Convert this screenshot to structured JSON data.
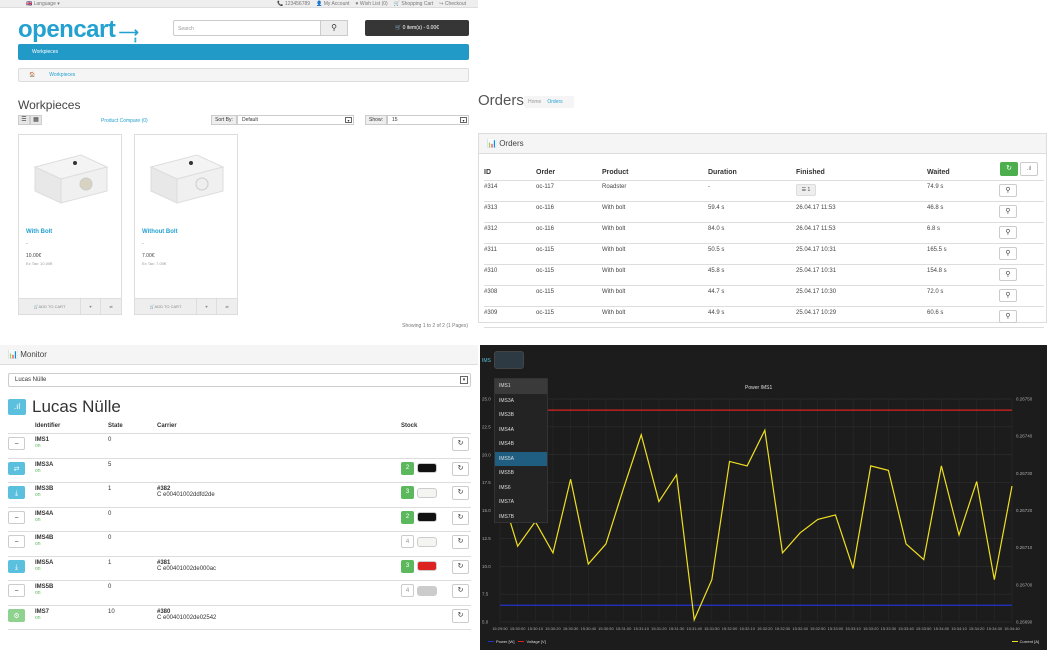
{
  "opencart": {
    "topbar": {
      "language": "Language",
      "phone": "123456789",
      "my_account": "My Account",
      "wishlist": "Wish List (0)",
      "shopping_cart": "Shopping Cart",
      "checkout": "Checkout"
    },
    "logo": "opencart",
    "search_placeholder": "Search",
    "cart_button": "0 item(s) - 0.00€",
    "menu_item": "Workpieces",
    "breadcrumb": [
      "Workpieces"
    ],
    "title": "Workpieces",
    "product_compare": "Product Compare (0)",
    "sort_label": "Sort By:",
    "sort_value": "Default",
    "show_label": "Show:",
    "show_value": "15",
    "products": [
      {
        "name": "With Bolt",
        "dash": "-",
        "price": "10.00€",
        "tax": "Ex Tax: 10.00€",
        "add": "ADD TO CART"
      },
      {
        "name": "Without Bolt",
        "dash": "-",
        "price": "7.00€",
        "tax": "Ex Tax: 7.00€",
        "add": "ADD TO CART"
      }
    ],
    "showing": "Showing 1 to 2 of 2 (1 Pages)"
  },
  "orders": {
    "title": "Orders",
    "breadcrumb": {
      "home": "Home",
      "current": "Orders"
    },
    "panel_title": "Orders",
    "columns": [
      "ID",
      "Order",
      "Product",
      "Duration",
      "Finished",
      "Waited"
    ],
    "rows": [
      {
        "id": "#314",
        "order": "oc-117",
        "product": "Roadster",
        "duration": "-",
        "finished": "",
        "list_count": "1",
        "waited": "74.9 s"
      },
      {
        "id": "#313",
        "order": "oc-116",
        "product": "With bolt",
        "duration": "59.4 s",
        "finished": "26.04.17 11:53",
        "waited": "46.8 s"
      },
      {
        "id": "#312",
        "order": "oc-116",
        "product": "With bolt",
        "duration": "84.0 s",
        "finished": "26.04.17 11:53",
        "waited": "6.8 s"
      },
      {
        "id": "#311",
        "order": "oc-115",
        "product": "With bolt",
        "duration": "50.5 s",
        "finished": "25.04.17 10:31",
        "waited": "165.5 s"
      },
      {
        "id": "#310",
        "order": "oc-115",
        "product": "With bolt",
        "duration": "45.8 s",
        "finished": "25.04.17 10:31",
        "waited": "154.8 s"
      },
      {
        "id": "#308",
        "order": "oc-115",
        "product": "With bolt",
        "duration": "44.7 s",
        "finished": "25.04.17 10:30",
        "waited": "72.0 s"
      },
      {
        "id": "#309",
        "order": "oc-115",
        "product": "With bolt",
        "duration": "44.9 s",
        "finished": "25.04.17 10:29",
        "waited": "60.6 s"
      }
    ]
  },
  "monitor": {
    "panel_title": "Monitor",
    "select_value": "Lucas Nülle",
    "name": "Lucas Nülle",
    "columns": [
      "Identifier",
      "State",
      "Carrier",
      "Stock"
    ],
    "rows": [
      {
        "id": "IMS1",
        "status": "on",
        "state": "0",
        "carrier": "",
        "carrier_id": "",
        "stock": "",
        "icon": "minus-icon",
        "btn": "plain"
      },
      {
        "id": "IMS3A",
        "status": "on",
        "state": "5",
        "carrier": "",
        "carrier_id": "",
        "stock": "2",
        "icon": "swap-icon",
        "btn": "blue",
        "block": "#111111"
      },
      {
        "id": "IMS3B",
        "status": "on",
        "state": "1",
        "carrier": "#382",
        "carrier_id": "C e00401002ddfd2de",
        "stock": "3",
        "icon": "download-icon",
        "btn": "blue",
        "block": "#f4f4f0"
      },
      {
        "id": "IMS4A",
        "status": "on",
        "state": "0",
        "carrier": "",
        "carrier_id": "",
        "stock": "2",
        "icon": "minus-icon",
        "btn": "plain",
        "block": "#111111"
      },
      {
        "id": "IMS4B",
        "status": "on",
        "state": "0",
        "carrier": "",
        "carrier_id": "",
        "stock": "4",
        "icon": "minus-icon",
        "btn": "plain",
        "block": "#f4f4f0",
        "stock_white": true
      },
      {
        "id": "IMS5A",
        "status": "on",
        "state": "1",
        "carrier": "#381",
        "carrier_id": "C e00401002de000ac",
        "stock": "3",
        "icon": "download-icon",
        "btn": "blue",
        "block": "#dd2222"
      },
      {
        "id": "IMS5B",
        "status": "on",
        "state": "0",
        "carrier": "",
        "carrier_id": "",
        "stock": "4",
        "icon": "minus-icon",
        "btn": "plain",
        "block": "#cccccc",
        "stock_white": true
      },
      {
        "id": "IMS7",
        "status": "on",
        "state": "10",
        "carrier": "#380",
        "carrier_id": "C e00401002de02542",
        "stock": "",
        "icon": "gear-icon",
        "btn": "green"
      }
    ]
  },
  "chart_data": {
    "type": "line",
    "title": "Power IMS1",
    "selector_label": "IMS",
    "dropdown": [
      "IMS1",
      "IMS3A",
      "IMS3B",
      "IMS4A",
      "IMS4B",
      "IMS5A",
      "IMS5B",
      "IMS6",
      "IMS7A",
      "IMS7B"
    ],
    "dropdown_selected": "IMS5A",
    "left_axis": {
      "ticks": [
        "25.0",
        "22.5",
        "20.0",
        "17.5",
        "15.0",
        "12.5",
        "10.0",
        "7.5",
        "5.0"
      ],
      "ylim": [
        5,
        25
      ]
    },
    "right_axis": {
      "ticks": [
        "0.26750",
        "0.26740",
        "0.26730",
        "0.26720",
        "0.26710",
        "0.26700",
        "0.26690"
      ],
      "ylim": [
        0.2669,
        0.2675
      ]
    },
    "x_ticks": [
      "15:29:50",
      "15:30:00",
      "15:30:10",
      "15:30:20",
      "15:30:30",
      "15:30:40",
      "15:30:50",
      "15:31:00",
      "15:31:10",
      "15:31:20",
      "15:31:30",
      "15:31:40",
      "15:31:50",
      "15:32:00",
      "15:32:10",
      "15:32:20",
      "15:32:30",
      "15:32:40",
      "15:32:50",
      "15:33:00",
      "15:33:10",
      "15:33:20",
      "15:33:30",
      "15:33:40",
      "15:33:50",
      "15:34:00",
      "15:34:10",
      "15:34:20",
      "15:34:30",
      "15:34:40"
    ],
    "series": [
      {
        "name": "Power [W]",
        "axis": "left",
        "color": "#2233cc",
        "values": [
          6.5,
          6.5,
          6.5,
          6.5,
          6.5,
          6.5,
          6.5,
          6.5,
          6.5,
          6.5,
          6.5,
          6.5,
          6.5,
          6.5,
          6.5,
          6.5,
          6.5,
          6.5,
          6.5,
          6.5,
          6.5,
          6.5,
          6.5,
          6.5,
          6.5,
          6.5,
          6.5,
          6.5,
          6.5,
          6.5
        ]
      },
      {
        "name": "Voltage [V]",
        "axis": "left",
        "color": "#dd2222",
        "values": [
          24,
          24,
          24,
          24,
          24,
          24,
          24,
          24,
          24,
          24,
          24,
          24,
          24,
          24,
          24,
          24,
          24,
          24,
          24,
          24,
          24,
          24,
          24,
          24,
          24,
          24,
          24,
          24,
          24,
          24
        ]
      },
      {
        "name": "Current [A]",
        "axis": "left",
        "color": "#f0e020",
        "values": [
          17,
          11.8,
          14,
          11.2,
          17.8,
          10.2,
          12,
          17,
          21.8,
          15.8,
          18.2,
          5.2,
          8.8,
          19.4,
          19,
          22.2,
          11.2,
          13,
          14.2,
          14.6,
          9.8,
          19,
          18.6,
          12,
          10.6,
          19,
          12.8,
          17.6,
          8.8,
          17.2
        ]
      }
    ]
  }
}
